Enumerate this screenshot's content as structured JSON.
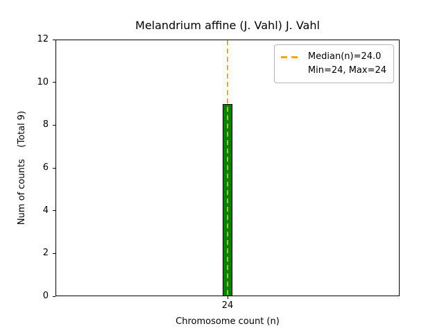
{
  "chart_data": {
    "type": "bar",
    "title": "Melandrium affine (J. Vahl) J. Vahl",
    "xlabel": "Chromosome count (n)",
    "ylabel": "Num of counts    (Total 9)",
    "categories": [
      "24"
    ],
    "values": [
      9
    ],
    "total_counts": 9,
    "ylim": [
      0,
      12
    ],
    "yticks": [
      0,
      2,
      4,
      6,
      8,
      10,
      12
    ],
    "xticks": [
      "24"
    ],
    "grid": false,
    "median_line": {
      "x": 24,
      "style": "dashed"
    },
    "legend": {
      "position": "upper right",
      "entries": [
        {
          "sample": "dashed-line",
          "label": "Median(n)=24.0"
        },
        {
          "sample": "none",
          "label": "Min=24, Max=24"
        }
      ]
    },
    "colors": {
      "bar_fill": "#008000",
      "bar_edge": "#000000",
      "median": "#FFA500",
      "axis": "#000000"
    }
  }
}
